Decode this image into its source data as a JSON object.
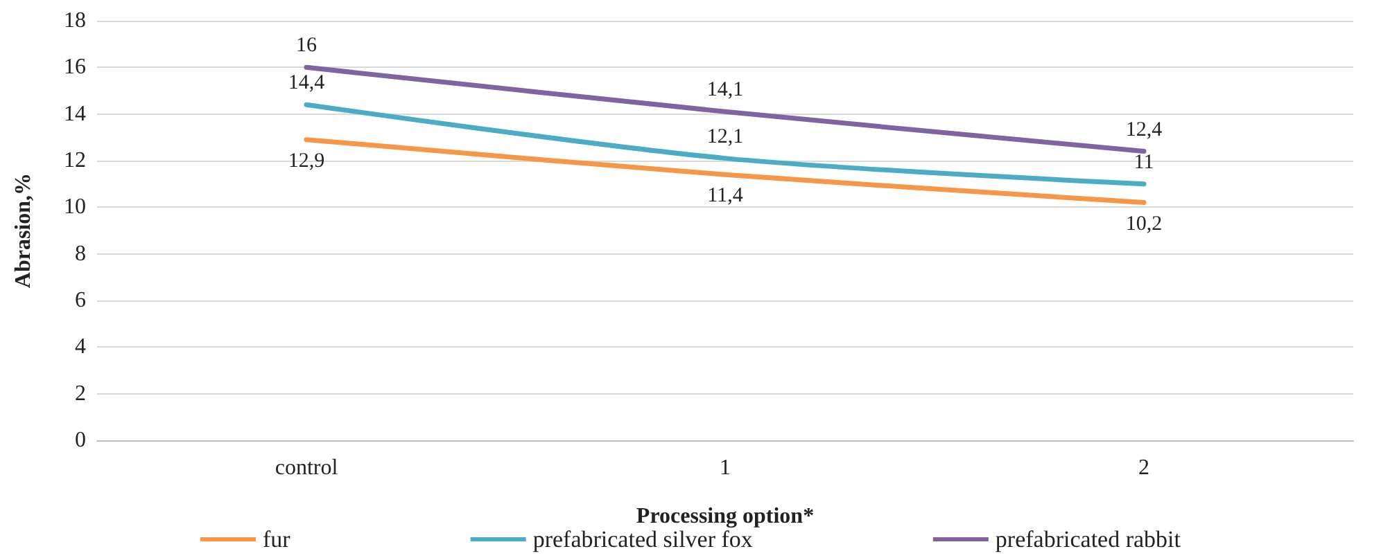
{
  "chart_data": {
    "type": "line",
    "xlabel": "Processing option*",
    "ylabel": "Abrasion,%",
    "categories": [
      "control",
      "1",
      "2"
    ],
    "series": [
      {
        "name": "fur",
        "color": "#f79646",
        "values": [
          12.9,
          11.4,
          10.2
        ],
        "value_labels": [
          "12,9",
          "11,4",
          "10,2"
        ]
      },
      {
        "name": "prefabricated silver fox",
        "color": "#4bacc6",
        "values": [
          14.4,
          12.1,
          11
        ],
        "value_labels": [
          "14,4",
          "12,1",
          "11"
        ]
      },
      {
        "name": "prefabricated rabbit",
        "color": "#8064a2",
        "values": [
          16,
          14.1,
          12.4
        ],
        "value_labels": [
          "16",
          "14,1",
          "12,4"
        ]
      }
    ],
    "ylim": [
      0,
      18
    ],
    "yticks": [
      0,
      2,
      4,
      6,
      8,
      10,
      12,
      14,
      16,
      18
    ],
    "grid": "y",
    "legend": "bottom",
    "marker": "none",
    "line_style": "solid"
  }
}
